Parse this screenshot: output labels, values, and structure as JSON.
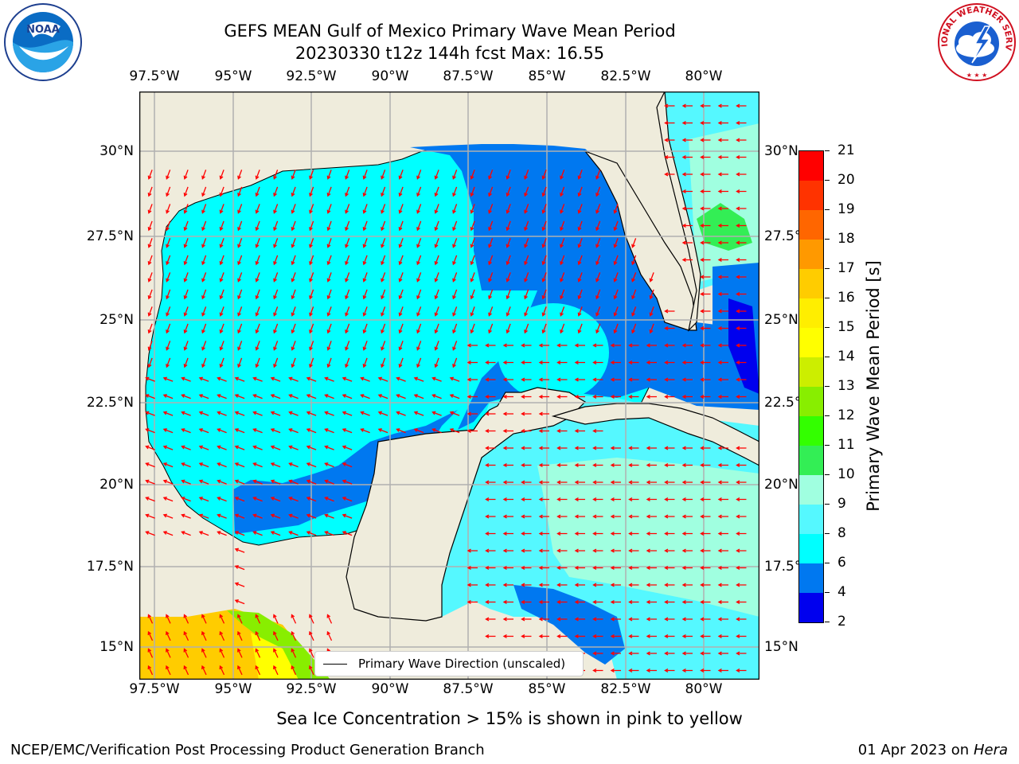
{
  "header": {
    "title_line1": "GEFS MEAN Gulf of Mexico Primary Wave Mean Period",
    "title_line2": "20230330 t12z 144h fcst   Max: 16.55"
  },
  "logos": {
    "left": {
      "text": "NOAA",
      "icon": "noaa-logo"
    },
    "right": {
      "text": "NATIONAL WEATHER SERVICE",
      "icon": "nws-logo"
    }
  },
  "map": {
    "lon_ticks": [
      "97.5°W",
      "95°W",
      "92.5°W",
      "90°W",
      "87.5°W",
      "85°W",
      "82.5°W",
      "80°W"
    ],
    "lat_ticks": [
      "30°N",
      "27.5°N",
      "25°N",
      "22.5°N",
      "20°N",
      "17.5°N",
      "15°N"
    ],
    "lon_range": [
      -98,
      -78.2
    ],
    "lat_range": [
      14,
      31.8
    ],
    "legend_label": "Primary Wave Direction (unscaled)",
    "colors": {
      "land": "#efecdc",
      "arrow": "#ff0000",
      "grid": "#b0b0b0"
    }
  },
  "colorbar": {
    "label": "Primary Wave Mean Period [s]",
    "ticks": [
      "2",
      "4",
      "6",
      "8",
      "9",
      "10",
      "11",
      "12",
      "13",
      "14",
      "15",
      "16",
      "17",
      "18",
      "19",
      "20",
      "21"
    ],
    "colors": [
      "#0000ee",
      "#0078f0",
      "#00ffff",
      "#55f8ff",
      "#a0ffe0",
      "#33ee55",
      "#33ff00",
      "#88ee00",
      "#ccee00",
      "#ffff00",
      "#ffee00",
      "#ffcc00",
      "#ff9900",
      "#ff6600",
      "#ff3300",
      "#ff0000"
    ]
  },
  "footer": {
    "note": "Sea Ice Concentration > 15% is shown in pink to yellow",
    "left": "NCEP/EMC/Verification Post Processing Product Generation Branch",
    "right_prefix": "01 Apr 2023 on ",
    "right_host": "Hera"
  }
}
